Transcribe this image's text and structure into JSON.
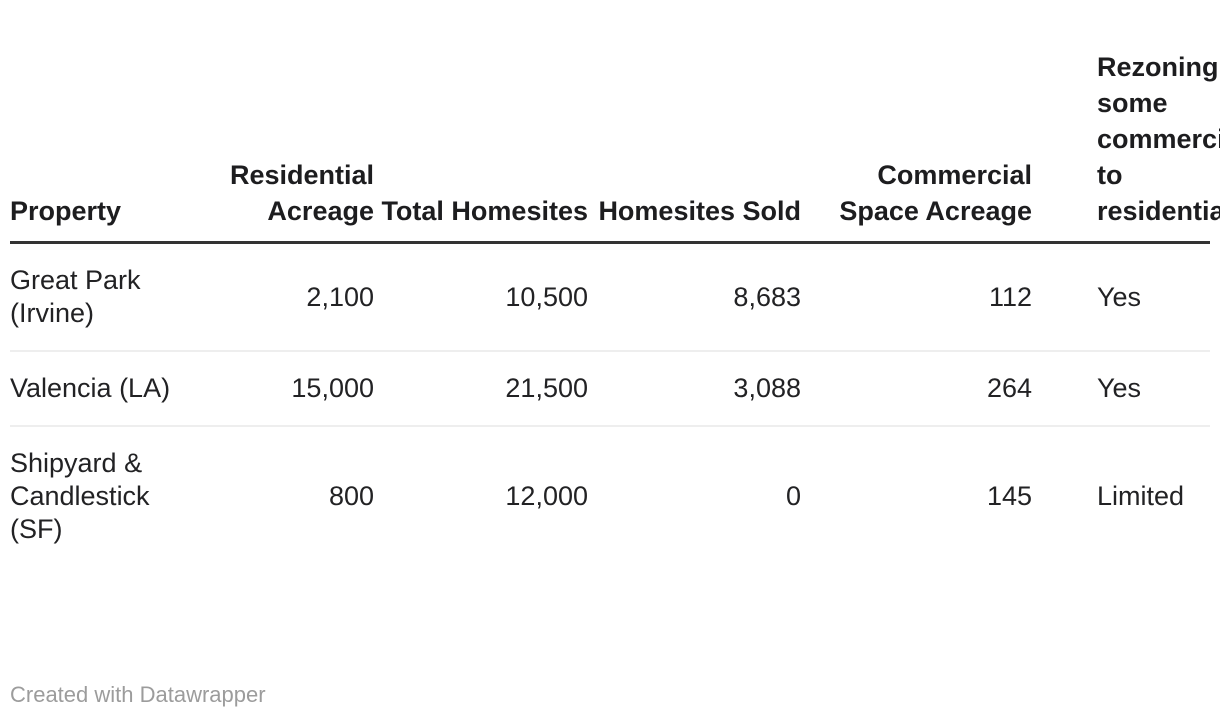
{
  "chart_data": {
    "type": "table",
    "columns": [
      "Property",
      "Residential Acreage",
      "Total Homesites",
      "Homesites Sold",
      "Commercial Space Acreage",
      "Rezoning some commercial to residential"
    ],
    "rows": [
      [
        "Great Park (Irvine)",
        "2,100",
        "10,500",
        "8,683",
        "112",
        "Yes"
      ],
      [
        "Valencia (LA)",
        "15,000",
        "21,500",
        "3,088",
        "264",
        "Yes"
      ],
      [
        "Shipyard & Candlestick (SF)",
        "800",
        "12,000",
        "0",
        "145",
        "Limited"
      ]
    ],
    "layout_hints": {
      "numeric_columns_right_aligned": true,
      "last_column_clipped_at_right_edge": true,
      "grid": "horizontal-rules-only"
    }
  },
  "footer": {
    "attribution": "Created with Datawrapper"
  },
  "colors": {
    "header_rule": "#333333",
    "row_divider": "#eeeeee",
    "header_text": "#1d1d1f",
    "body_text": "#222224",
    "footer_text": "#9c9c9c",
    "background": "#ffffff"
  }
}
